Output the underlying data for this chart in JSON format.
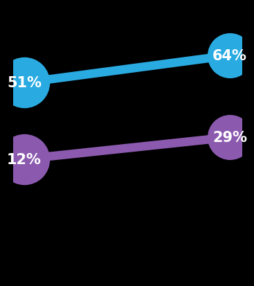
{
  "blue_line": {
    "x": [
      0.05,
      0.95
    ],
    "y": [
      0.72,
      0.82
    ],
    "color": "#29ABE2",
    "labels": [
      "51%",
      "64%"
    ],
    "circle_sizes": [
      2800,
      2200
    ]
  },
  "purple_line": {
    "x": [
      0.05,
      0.95
    ],
    "y": [
      0.44,
      0.52
    ],
    "color": "#8B5AAF",
    "labels": [
      "12%",
      "29%"
    ],
    "circle_sizes": [
      2800,
      2200
    ]
  },
  "background_color": "#000000",
  "line_width": 9,
  "font_size": 15,
  "font_color": "#ffffff",
  "font_weight": "bold"
}
